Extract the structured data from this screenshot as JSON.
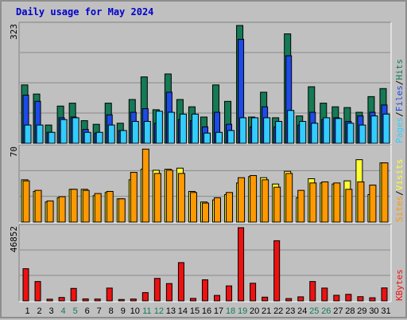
{
  "title": "Daily usage for May 2024",
  "colors": {
    "background": "#c0c0c0",
    "pages": "#33ccff",
    "files": "#1e4ae8",
    "hits": "#157a55",
    "visits": "#ffff33",
    "sites": "#ff9900",
    "kbytes": "#ee1111",
    "weekend_label": "#157a55",
    "title": "#0000cc"
  },
  "chart_data": {
    "type": "bar",
    "title": "Daily usage for May 2024",
    "categories": [
      "1",
      "2",
      "3",
      "4",
      "5",
      "6",
      "7",
      "8",
      "9",
      "10",
      "11",
      "12",
      "13",
      "14",
      "15",
      "16",
      "17",
      "18",
      "19",
      "20",
      "21",
      "22",
      "23",
      "24",
      "25",
      "26",
      "27",
      "28",
      "29",
      "30",
      "31"
    ],
    "weekend_days": [
      "4",
      "5",
      "11",
      "12",
      "18",
      "19",
      "25",
      "26"
    ],
    "panels": [
      {
        "name": "hits-files-pages",
        "ymax_label": "323",
        "ylim": [
          0,
          323
        ],
        "legend": [
          "Pages",
          "/",
          "Files",
          "/",
          "Hits"
        ],
        "series": [
          {
            "name": "Hits",
            "values": [
              160,
              135,
              50,
              102,
              110,
              62,
              52,
              110,
              55,
              120,
              182,
              92,
              190,
              120,
              100,
              72,
              160,
              115,
              323,
              72,
              140,
              70,
              300,
              75,
              155,
              110,
              100,
              98,
              85,
              128,
              150
            ]
          },
          {
            "name": "Files",
            "values": [
              132,
              115,
              30,
              70,
              72,
              38,
              28,
              78,
              35,
              85,
              95,
              55,
              140,
              65,
              62,
              45,
              85,
              52,
              285,
              45,
              100,
              45,
              240,
              50,
              85,
              65,
              70,
              60,
              75,
              85,
              105
            ]
          },
          {
            "name": "Pages",
            "values": [
              50,
              50,
              30,
              65,
              70,
              30,
              30,
              50,
              35,
              60,
              60,
              88,
              85,
              80,
              80,
              28,
              30,
              35,
              70,
              70,
              70,
              60,
              90,
              60,
              55,
              70,
              68,
              55,
              50,
              75,
              80
            ]
          }
        ]
      },
      {
        "name": "visits-sites",
        "ymax_label": "70",
        "ylim": [
          0,
          70
        ],
        "legend": [
          "Sites",
          "/",
          "Visits"
        ],
        "series": [
          {
            "name": "Visits",
            "values": [
              40,
              29,
              19,
              23,
              31,
              31,
              25,
              28,
              22,
              40,
              50,
              49,
              50,
              51,
              29,
              19,
              21,
              26,
              37,
              43,
              42,
              36,
              48,
              23,
              41,
              37,
              36,
              39,
              59,
              26,
              56
            ]
          },
          {
            "name": "Sites",
            "values": [
              39,
              30,
              20,
              24,
              31,
              30,
              27,
              29,
              22,
              47,
              69,
              46,
              49,
              46,
              28,
              18,
              23,
              28,
              42,
              44,
              40,
              33,
              46,
              30,
              37,
              38,
              37,
              31,
              38,
              35,
              56
            ]
          }
        ]
      },
      {
        "name": "kbytes",
        "ymax_label": "46852",
        "ylim": [
          0,
          46852
        ],
        "legend": [
          "KBytes"
        ],
        "series": [
          {
            "name": "KBytes",
            "values": [
              20600,
              12400,
              1100,
              2200,
              8000,
              1300,
              1200,
              8200,
              900,
              1200,
              5300,
              14400,
              11100,
              24500,
              1600,
              13500,
              3500,
              9600,
              46852,
              11300,
              2400,
              38500,
              1500,
              2600,
              12400,
              8200,
              3600,
              4200,
              2700,
              2000,
              8300
            ]
          }
        ]
      }
    ]
  }
}
